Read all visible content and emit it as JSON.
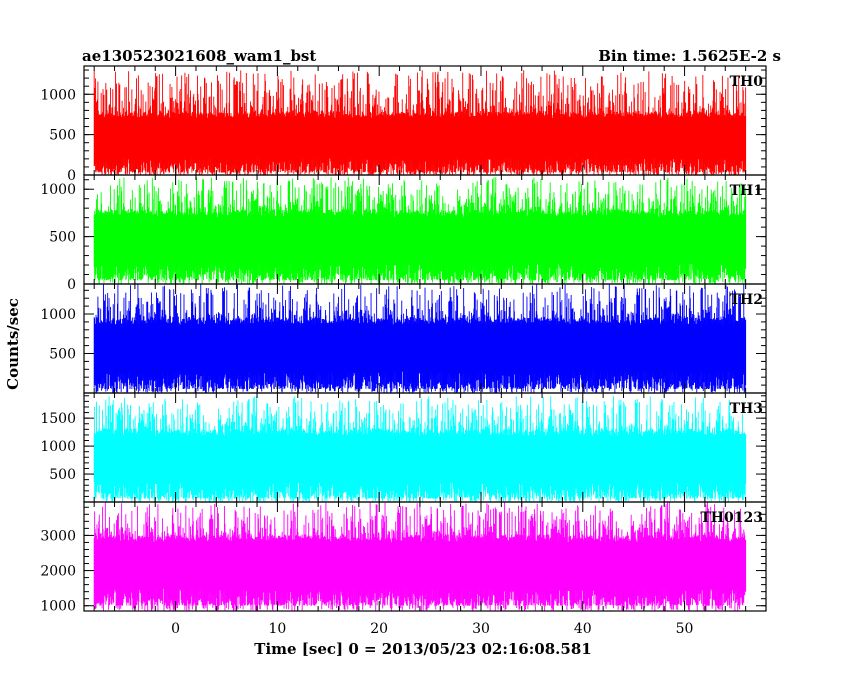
{
  "header": {
    "title": "ae130523021608_wam1_bst",
    "bin_time": "Bin time: 1.5625E-2 s"
  },
  "chart_data": {
    "type": "line",
    "xlabel": "Time [sec] 0 = 2013/05/23 02:16:08.581",
    "ylabel": "Counts/sec",
    "xlim": [
      -9,
      58
    ],
    "x_ticks": [
      0,
      10,
      20,
      30,
      40,
      50
    ],
    "x_range_data": [
      -8,
      56
    ],
    "panels": [
      {
        "name": "TH0",
        "color": "#ff0000",
        "ylim": [
          0,
          1350
        ],
        "y_ticks": [
          0,
          500,
          1000
        ],
        "base_min": 30,
        "base_max": 780,
        "peak_max": 1300
      },
      {
        "name": "TH1",
        "color": "#00ff00",
        "ylim": [
          0,
          1150
        ],
        "y_ticks": [
          0,
          500,
          1000
        ],
        "base_min": 40,
        "base_max": 780,
        "peak_max": 1130
      },
      {
        "name": "TH2",
        "color": "#0000ff",
        "ylim": [
          0,
          1380
        ],
        "y_ticks": [
          500,
          1000
        ],
        "base_min": 50,
        "base_max": 950,
        "peak_max": 1380
      },
      {
        "name": "TH3",
        "color": "#00ffff",
        "ylim": [
          0,
          1950
        ],
        "y_ticks": [
          500,
          1000,
          1500
        ],
        "base_min": 60,
        "base_max": 1300,
        "peak_max": 1900
      },
      {
        "name": "TH0123",
        "color": "#ff00ff",
        "ylim": [
          850,
          3950
        ],
        "y_ticks": [
          1000,
          2000,
          3000
        ],
        "base_min": 1000,
        "base_max": 3000,
        "peak_max": 3950
      }
    ]
  }
}
